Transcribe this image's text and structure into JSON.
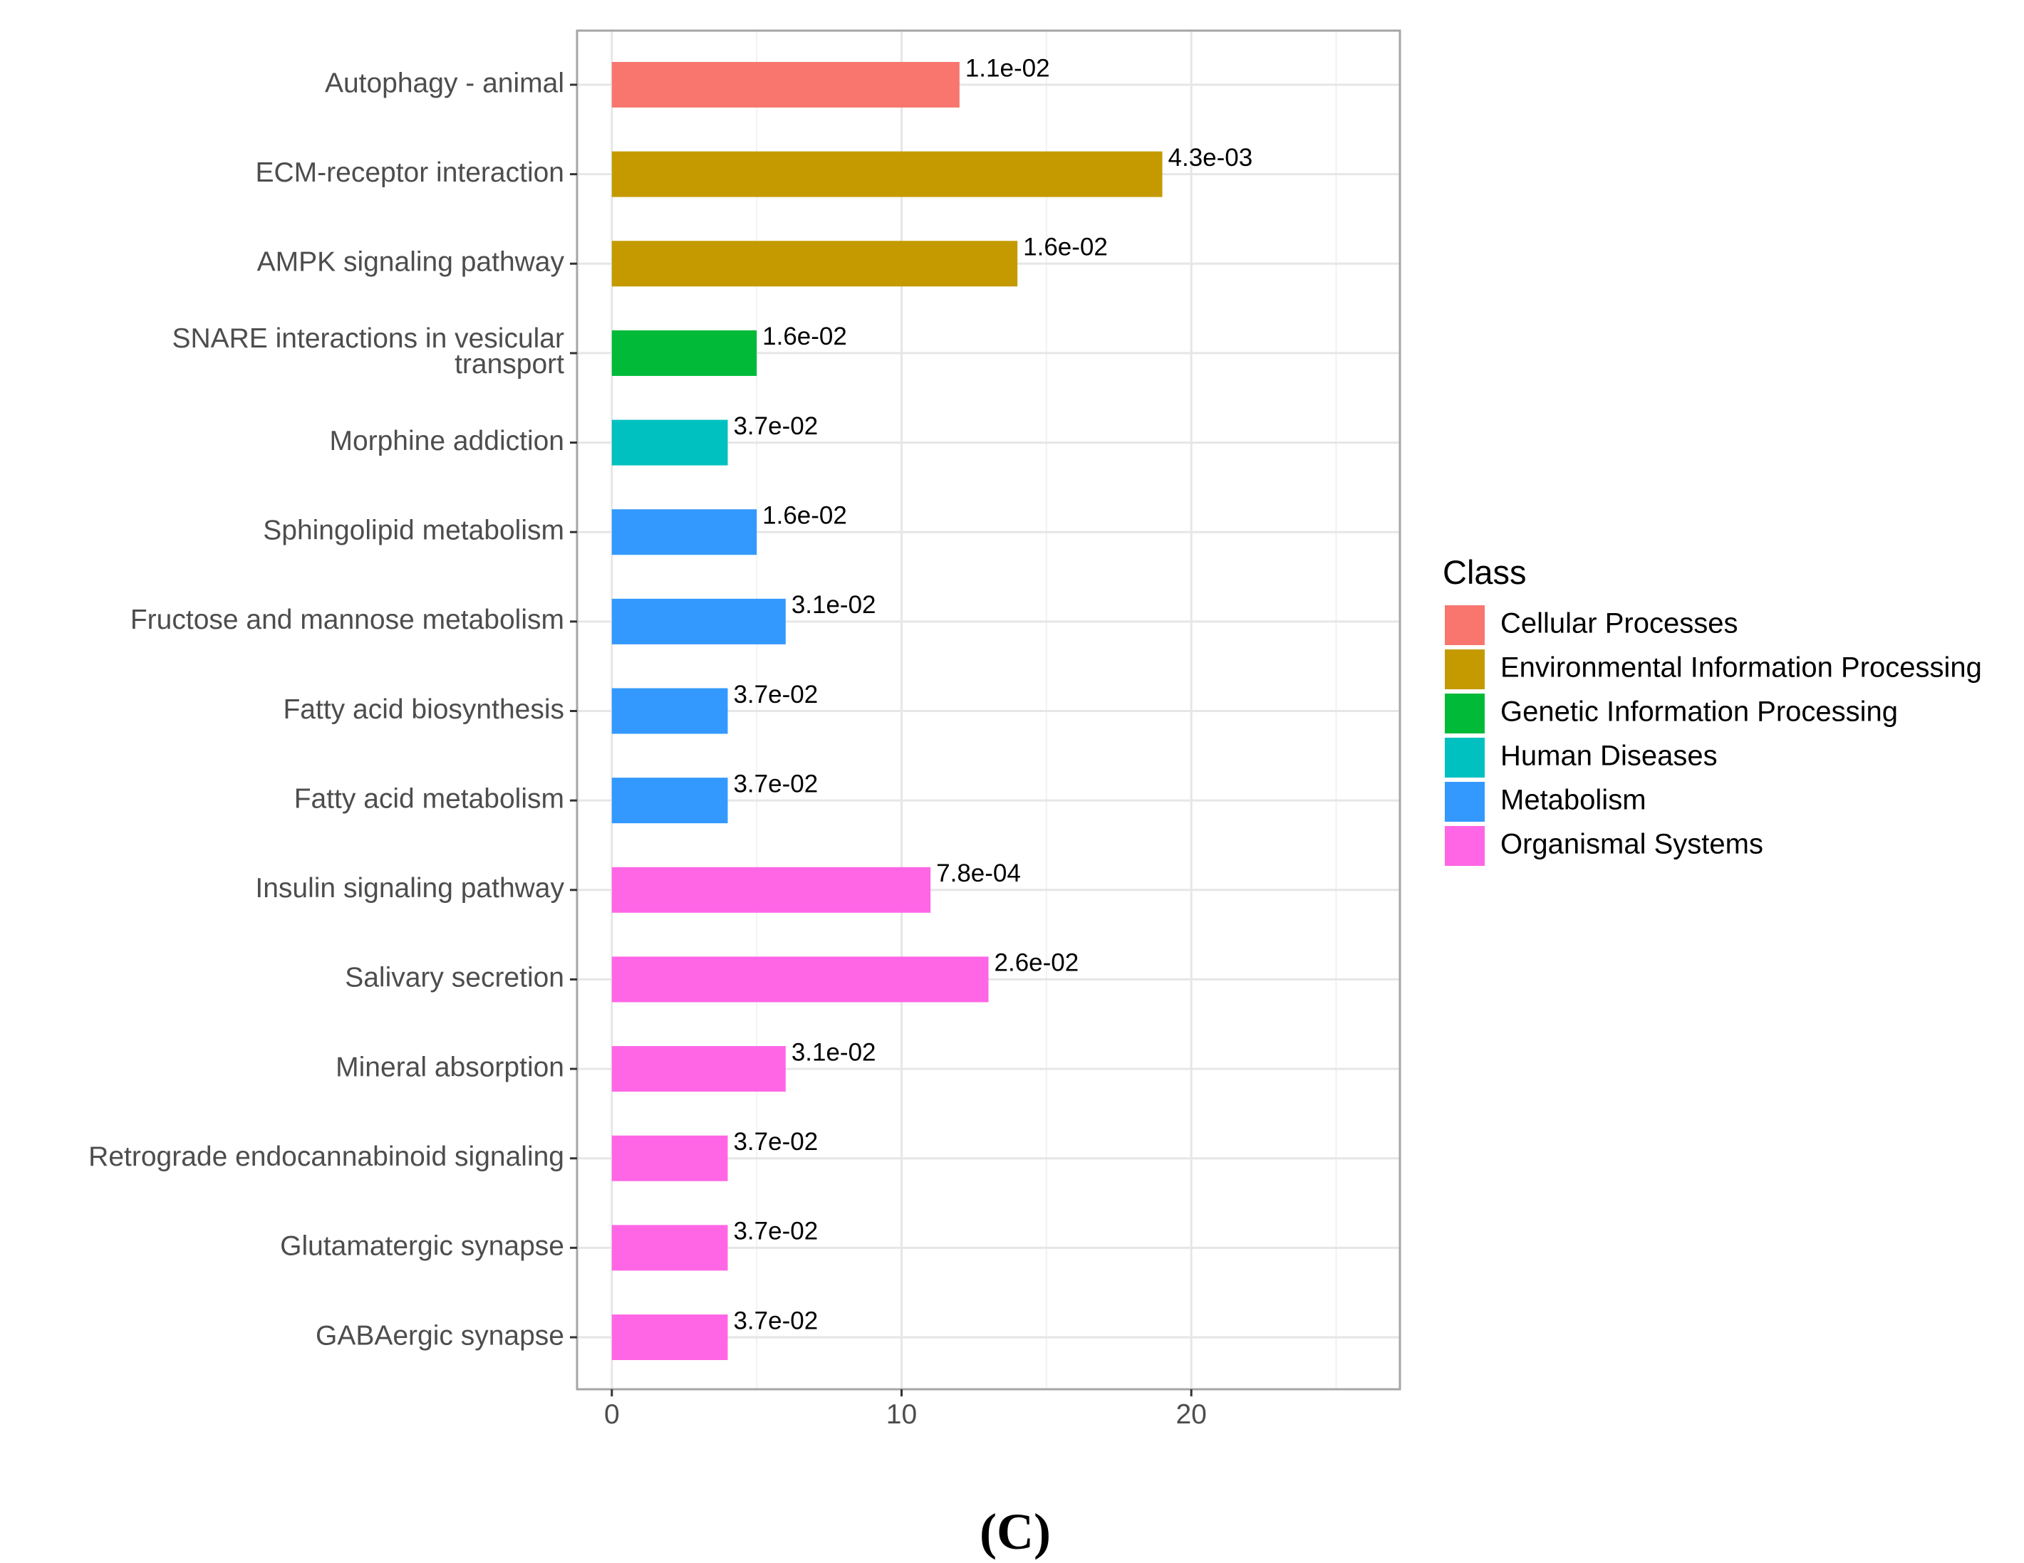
{
  "chart_data": {
    "type": "bar",
    "orientation": "horizontal",
    "title": "",
    "xlabel": "",
    "ylabel": "",
    "xlim": [
      -1.2,
      27.2
    ],
    "x_ticks": [
      0,
      10,
      20
    ],
    "grid": true,
    "legend_position": "right",
    "legend_title": "Class",
    "classes": [
      {
        "name": "Cellular Processes",
        "color": "#F8766D"
      },
      {
        "name": "Environmental Information Processing",
        "color": "#C49A00"
      },
      {
        "name": "Genetic Information Processing",
        "color": "#00BA38"
      },
      {
        "name": "Human Diseases",
        "color": "#00C0C0"
      },
      {
        "name": "Metabolism",
        "color": "#3399FF"
      },
      {
        "name": "Organismal Systems",
        "color": "#FF66E6"
      }
    ],
    "bars": [
      {
        "category": [
          "Autophagy - animal"
        ],
        "value": 12,
        "label": "1.1e-02",
        "class": 0
      },
      {
        "category": [
          "ECM-receptor interaction"
        ],
        "value": 19,
        "label": "4.3e-03",
        "class": 1
      },
      {
        "category": [
          "AMPK signaling pathway"
        ],
        "value": 14,
        "label": "1.6e-02",
        "class": 1
      },
      {
        "category": [
          "SNARE interactions in vesicular",
          "transport"
        ],
        "value": 5,
        "label": "1.6e-02",
        "class": 2
      },
      {
        "category": [
          "Morphine addiction"
        ],
        "value": 4,
        "label": "3.7e-02",
        "class": 3
      },
      {
        "category": [
          "Sphingolipid metabolism"
        ],
        "value": 5,
        "label": "1.6e-02",
        "class": 4
      },
      {
        "category": [
          "Fructose and mannose metabolism"
        ],
        "value": 6,
        "label": "3.1e-02",
        "class": 4
      },
      {
        "category": [
          "Fatty acid biosynthesis"
        ],
        "value": 4,
        "label": "3.7e-02",
        "class": 4
      },
      {
        "category": [
          "Fatty acid metabolism"
        ],
        "value": 4,
        "label": "3.7e-02",
        "class": 4
      },
      {
        "category": [
          "Insulin signaling pathway"
        ],
        "value": 11,
        "label": "7.8e-04",
        "class": 5
      },
      {
        "category": [
          "Salivary secretion"
        ],
        "value": 13,
        "label": "2.6e-02",
        "class": 5
      },
      {
        "category": [
          "Mineral absorption"
        ],
        "value": 6,
        "label": "3.1e-02",
        "class": 5
      },
      {
        "category": [
          "Retrograde endocannabinoid signaling"
        ],
        "value": 4,
        "label": "3.7e-02",
        "class": 5
      },
      {
        "category": [
          "Glutamatergic synapse"
        ],
        "value": 4,
        "label": "3.7e-02",
        "class": 5
      },
      {
        "category": [
          "GABAergic synapse"
        ],
        "value": 4,
        "label": "3.7e-02",
        "class": 5
      }
    ]
  },
  "panel_label": "(C)"
}
